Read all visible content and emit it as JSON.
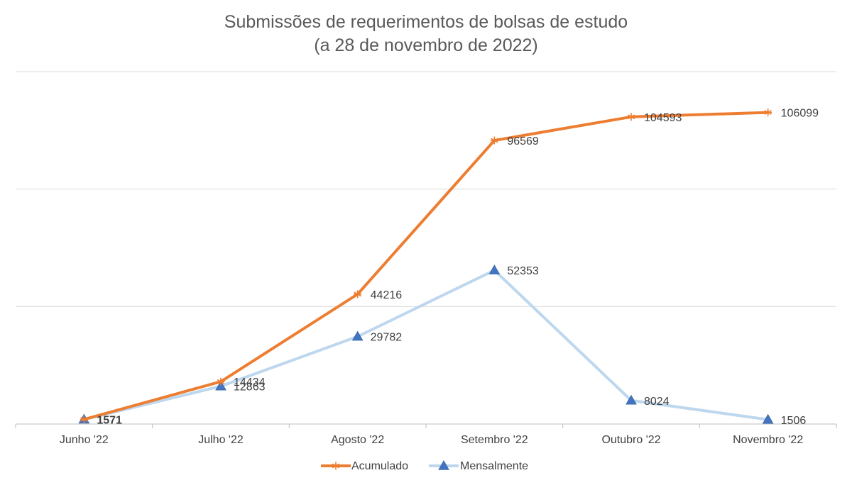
{
  "chart_data": {
    "type": "line",
    "title": [
      "Submissões de requerimentos de bolsas de estudo",
      "(a 28 de novembro de 2022)"
    ],
    "categories": [
      "Junho '22",
      "Julho '22",
      "Agosto '22",
      "Setembro '22",
      "Outubro '22",
      "Novembro '22"
    ],
    "series": [
      {
        "name": "Acumulado",
        "values": [
          1571,
          14434,
          44216,
          96569,
          104593,
          106099
        ],
        "color": "#ED7D31",
        "marker": "star"
      },
      {
        "name": "Mensalmente",
        "values": [
          1571,
          12863,
          29782,
          52353,
          8024,
          1506
        ],
        "color": "#BDD7EE",
        "marker": "triangle",
        "marker_color": "#4472C4"
      }
    ],
    "data_labels": [
      [
        "",
        "14434",
        "44216",
        "96569",
        "104593",
        "106099"
      ],
      [
        "1571",
        "12863",
        "29782",
        "52353",
        "8024",
        "1506"
      ]
    ],
    "ylim": [
      0,
      120000
    ],
    "y_gridlines": [
      0,
      40000,
      80000,
      120000
    ],
    "y_tick_labels_shown": false,
    "grid": true,
    "legend_position": "bottom"
  }
}
